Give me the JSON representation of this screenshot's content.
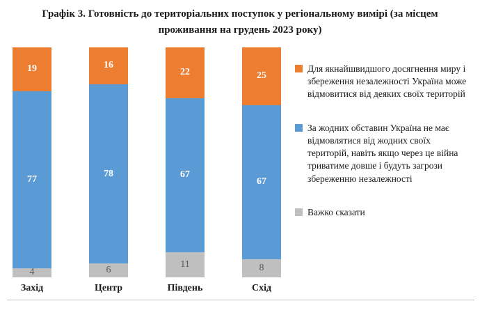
{
  "title": "Графік 3. Готовність до територіальних поступок у регіональному вимірі (за місцем проживання на грудень 2023 року)",
  "chart_data": {
    "type": "bar",
    "stacked": true,
    "orientation": "vertical",
    "categories": [
      "Захід",
      "Центр",
      "Південь",
      "Схід"
    ],
    "series": [
      {
        "name": "Для якнайшвидшого досягнення миру і збереження незалежності Україна може відмовитися від деяких своїх територій",
        "color": "#ED7D31",
        "values": [
          19,
          16,
          22,
          25
        ]
      },
      {
        "name": "За жодних обставин Україна не має відмовлятися від жодних своїх територій, навіть якщо через це війна триватиме довше і будуть загрози збереженню незалежності",
        "color": "#5B9BD5",
        "values": [
          77,
          78,
          67,
          67
        ]
      },
      {
        "name": "Важко сказати",
        "color": "#BFBFBF",
        "values": [
          4,
          6,
          11,
          8
        ]
      }
    ],
    "ylim": [
      0,
      100
    ],
    "grid": false,
    "legend_position": "right",
    "value_labels": "inside"
  }
}
